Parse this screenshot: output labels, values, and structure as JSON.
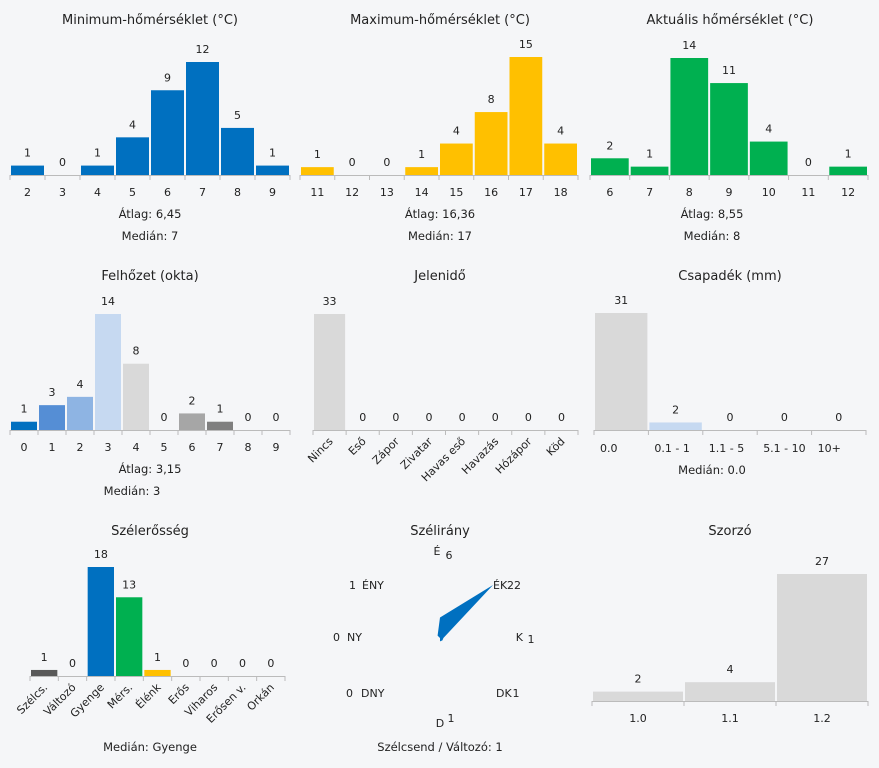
{
  "chart_data": [
    {
      "id": "min",
      "type": "bar",
      "title": "Minimum-hőmérséklet (°C)",
      "categories": [
        "2",
        "3",
        "4",
        "5",
        "6",
        "7",
        "8",
        "9"
      ],
      "values": [
        1,
        0,
        1,
        4,
        9,
        12,
        5,
        1
      ],
      "colors": [
        "#0070c0"
      ],
      "stats": [
        "Átlag: 6,45",
        "Medián: 7"
      ]
    },
    {
      "id": "max",
      "type": "bar",
      "title": "Maximum-hőmérséklet (°C)",
      "categories": [
        "11",
        "12",
        "13",
        "14",
        "15",
        "16",
        "17",
        "18"
      ],
      "values": [
        1,
        0,
        0,
        1,
        4,
        8,
        15,
        4
      ],
      "colors": [
        "#ffc000"
      ],
      "stats": [
        "Átlag: 16,36",
        "Medián: 17"
      ]
    },
    {
      "id": "cur",
      "type": "bar",
      "title": "Aktuális hőmérséklet (°C)",
      "categories": [
        "6",
        "7",
        "8",
        "9",
        "10",
        "11",
        "12"
      ],
      "values": [
        2,
        1,
        14,
        11,
        4,
        0,
        1
      ],
      "colors": [
        "#00b050"
      ],
      "stats": [
        "Átlag: 8,55",
        "Medián: 8"
      ]
    },
    {
      "id": "cloud",
      "type": "bar",
      "title": "Felhőzet (okta)",
      "categories": [
        "0",
        "1",
        "2",
        "3",
        "4",
        "5",
        "6",
        "7",
        "8",
        "9"
      ],
      "values": [
        1,
        3,
        4,
        14,
        8,
        0,
        2,
        1,
        0,
        0
      ],
      "colors": [
        "#0070c0",
        "#558ed5",
        "#8eb4e3",
        "#c6d9f1",
        "#d9d9d9",
        "#d9d9d9",
        "#a6a6a6",
        "#7f7f7f",
        "#7f7f7f",
        "#7f7f7f"
      ],
      "stats": [
        "Átlag: 3,15",
        "Medián: 3"
      ]
    },
    {
      "id": "wx",
      "type": "bar",
      "title": "Jelenidő",
      "categories": [
        "Nincs",
        "Eső",
        "Zápor",
        "Zivatar",
        "Havas eső",
        "Havazás",
        "Hózápor",
        "Köd"
      ],
      "values": [
        33,
        0,
        0,
        0,
        0,
        0,
        0,
        0
      ],
      "colors": [
        "#d9d9d9"
      ],
      "stats": []
    },
    {
      "id": "rain",
      "type": "bar",
      "title": "Csapadék (mm)",
      "categories": [
        "0.0",
        "0.1 - 1",
        "1.1 - 5",
        "5.1 - 10",
        "10+"
      ],
      "values": [
        31,
        2,
        0,
        0,
        0
      ],
      "colors": [
        "#d9d9d9",
        "#c6d9f1",
        "#d9d9d9",
        "#d9d9d9",
        "#d9d9d9"
      ],
      "stats": [
        "Medián: 0.0"
      ]
    },
    {
      "id": "wind",
      "type": "bar",
      "title": "Szélerősség",
      "categories": [
        "Szélcs.",
        "Változó",
        "Gyenge",
        "Mérs.",
        "Élénk",
        "Erős",
        "Viharos",
        "Erősen v.",
        "Orkán"
      ],
      "values": [
        1,
        0,
        18,
        13,
        1,
        0,
        0,
        0,
        0
      ],
      "colors": [
        "#595959",
        "#595959",
        "#0070c0",
        "#00b050",
        "#ffc000",
        "#d9d9d9",
        "#d9d9d9",
        "#d9d9d9",
        "#d9d9d9"
      ],
      "stats": [
        "Medián: Gyenge"
      ]
    },
    {
      "id": "dir",
      "type": "radar",
      "title": "Szélirány",
      "directions": [
        "É",
        "ÉK",
        "K",
        "DK",
        "D",
        "DNY",
        "NY",
        "ÉNY"
      ],
      "values": [
        6,
        22,
        1,
        1,
        1,
        0,
        0,
        1
      ],
      "color": "#0070c0",
      "stats": [
        "Szélcsend / Változó: 1"
      ]
    },
    {
      "id": "mult",
      "type": "bar",
      "title": "Szorzó",
      "categories": [
        "1.0",
        "1.1",
        "1.2"
      ],
      "values": [
        2,
        4,
        27
      ],
      "colors": [
        "#d9d9d9"
      ],
      "stats": []
    }
  ]
}
